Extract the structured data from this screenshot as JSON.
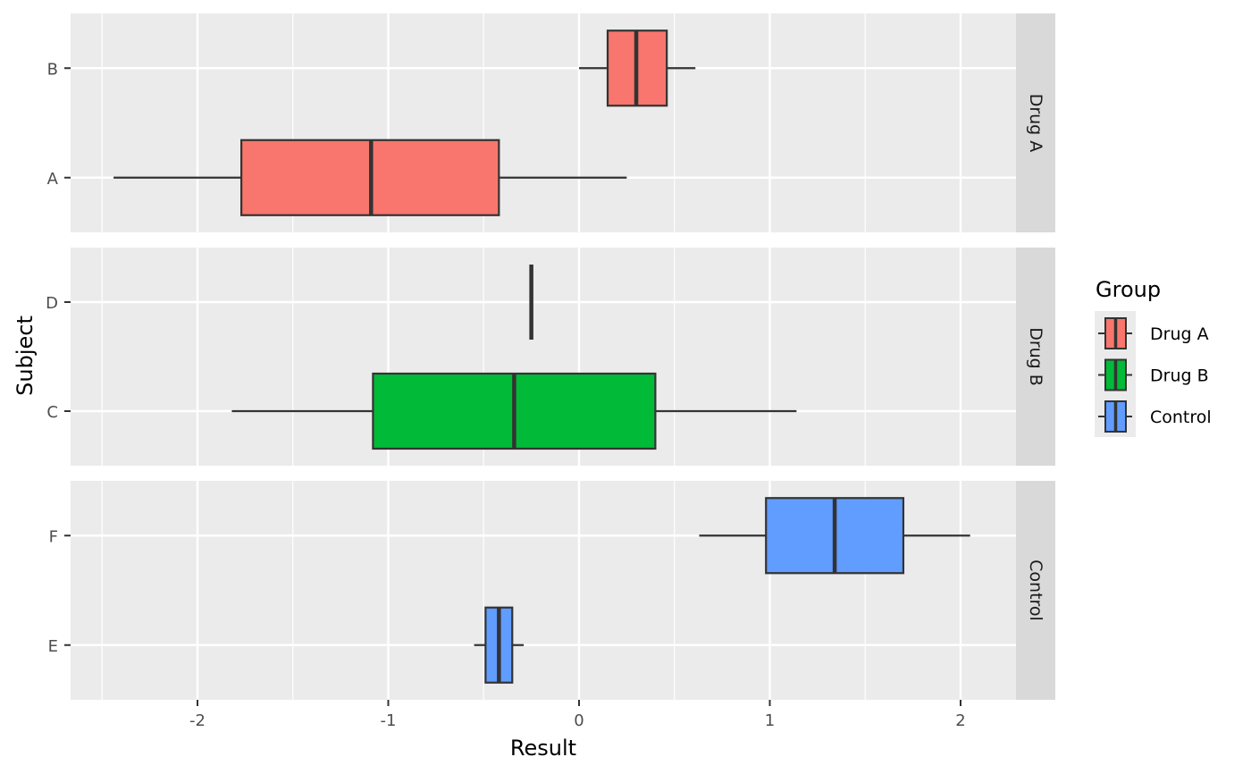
{
  "chart_data": {
    "type": "boxplot",
    "orientation": "horizontal",
    "xlabel": "Result",
    "ylabel": "Subject",
    "xlim": [
      -2.62,
      2.48
    ],
    "x_ticks": [
      -2,
      -1,
      0,
      1,
      2
    ],
    "x_tick_labels": [
      "-2",
      "-1",
      "0",
      "1",
      "2"
    ],
    "grid": true,
    "facet_by": "Group",
    "facets": [
      {
        "label": "Drug A",
        "subjects": [
          {
            "name": "B",
            "min": 0.0,
            "q1": 0.15,
            "median": 0.3,
            "q3": 0.46,
            "max": 0.61
          },
          {
            "name": "A",
            "min": -2.44,
            "q1": -1.77,
            "median": -1.09,
            "q3": -0.42,
            "max": 0.25
          }
        ]
      },
      {
        "label": "Drug B",
        "subjects": [
          {
            "name": "D",
            "min": -0.25,
            "q1": -0.25,
            "median": -0.25,
            "q3": -0.25,
            "max": -0.25
          },
          {
            "name": "C",
            "min": -1.82,
            "q1": -1.08,
            "median": -0.34,
            "q3": 0.4,
            "max": 1.14
          }
        ]
      },
      {
        "label": "Control",
        "subjects": [
          {
            "name": "F",
            "min": 0.63,
            "q1": 0.98,
            "median": 1.34,
            "q3": 1.7,
            "max": 2.05
          },
          {
            "name": "E",
            "min": -0.55,
            "q1": -0.49,
            "median": -0.42,
            "q3": -0.35,
            "max": -0.29
          }
        ]
      }
    ],
    "legend": {
      "title": "Group",
      "placement": "right",
      "entries": [
        {
          "label": "Drug A",
          "color": "#F8766D"
        },
        {
          "label": "Drug B",
          "color": "#00BA38"
        },
        {
          "label": "Control",
          "color": "#619CFF"
        }
      ]
    },
    "colors": {
      "panel_background": "#EBEBEB",
      "grid": "#FFFFFF",
      "strip_background": "#D9D9D9",
      "box_outline": "#333333"
    }
  }
}
